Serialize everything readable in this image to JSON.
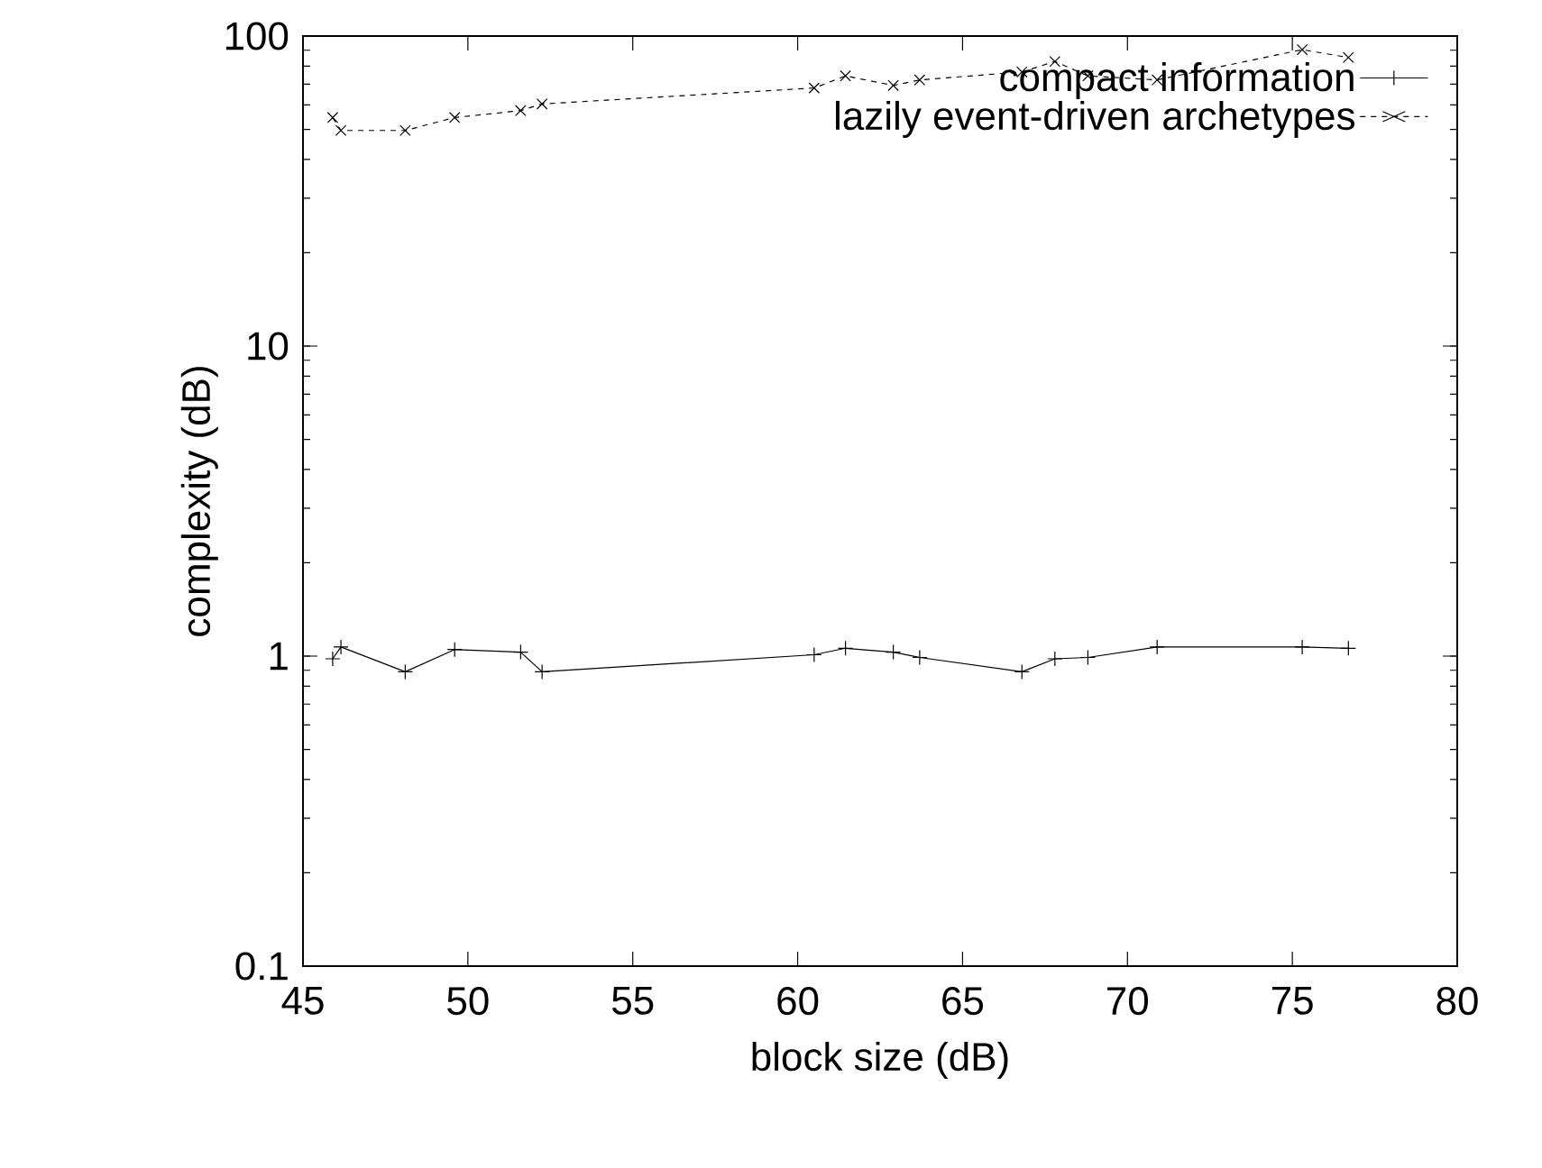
{
  "chart_data": {
    "type": "line",
    "xlabel": "block size (dB)",
    "ylabel": "complexity (dB)",
    "log": "y",
    "xlim": [
      45,
      80
    ],
    "xticks": [
      45,
      50,
      55,
      60,
      65,
      70,
      75,
      80
    ],
    "ylim": [
      0.1,
      100
    ],
    "yticks": [
      0.1,
      1,
      10,
      100
    ],
    "legend": "top right",
    "grid": false,
    "x": [
      45.9,
      46.15,
      48.1,
      49.6,
      51.6,
      52.25,
      60.5,
      61.45,
      62.9,
      63.7,
      66.8,
      67.8,
      68.8,
      70.9,
      75.3,
      76.7
    ],
    "series": [
      {
        "name": "compact information",
        "color": "#000000",
        "marker": "plus",
        "line_style": "solid",
        "values": [
          0.98,
          1.07,
          0.89,
          1.05,
          1.03,
          0.89,
          1.01,
          1.06,
          1.03,
          0.99,
          0.89,
          0.98,
          0.99,
          1.07,
          1.07,
          1.06
        ]
      },
      {
        "name": "lazily event-driven archetypes",
        "color": "#000000",
        "marker": "cross",
        "line_style": "dashed",
        "values": [
          54.6,
          49.6,
          49.6,
          54.6,
          57.5,
          60.4,
          68,
          74.4,
          69.3,
          72.2,
          76.6,
          82.8,
          74.4,
          72.2,
          90.4,
          85.3
        ]
      }
    ]
  }
}
